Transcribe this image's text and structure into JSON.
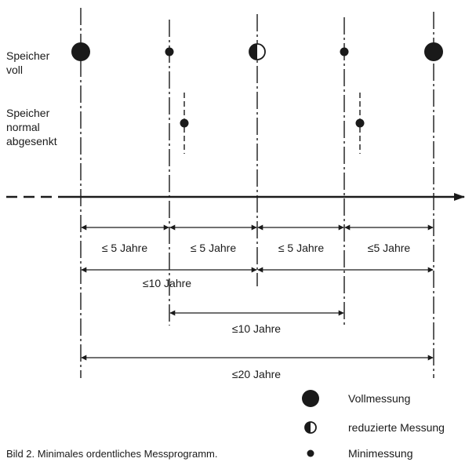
{
  "row_labels": {
    "full": [
      "Speicher",
      "voll"
    ],
    "lowered": [
      "Speicher",
      "normal",
      "abgesenkt"
    ]
  },
  "intervals_5": [
    "≤ 5 Jahre",
    "≤ 5 Jahre",
    "≤ 5 Jahre",
    "≤5 Jahre"
  ],
  "interval_10_a": "≤10 Jahre",
  "interval_10_b": "≤10 Jahre",
  "interval_20": "≤20 Jahre",
  "legend": {
    "full": "Vollmessung",
    "reduced": "reduzierte Messung",
    "mini": "Minimessung"
  },
  "caption": "Bild 2. Minimales ordentliches Messprogramm."
}
